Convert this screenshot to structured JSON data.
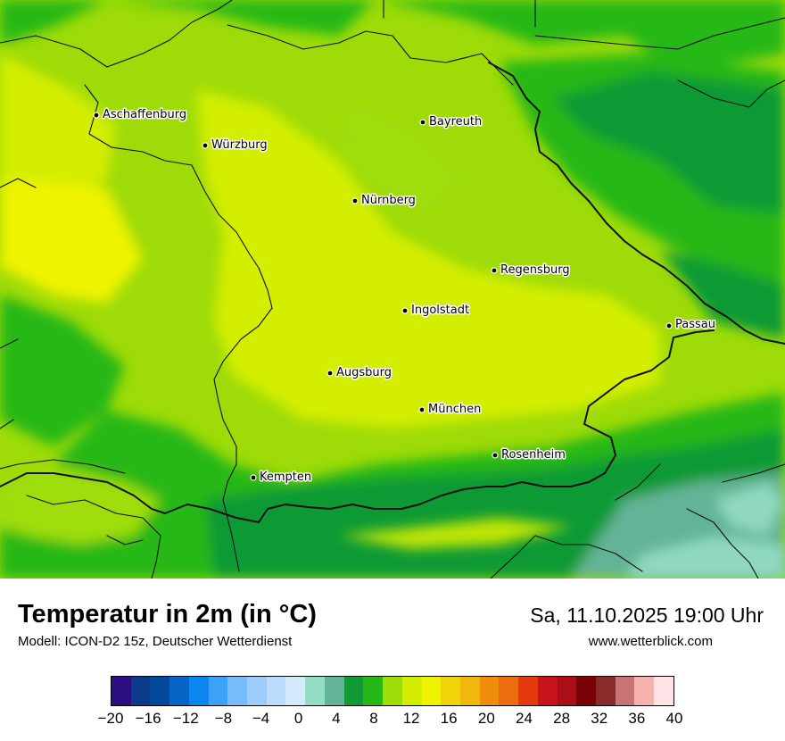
{
  "header": {
    "title": "Temperatur in 2m (in °C)",
    "subtitle": "Modell: ICON-D2 15z, Deutscher Wetterdienst",
    "datetime": "Sa, 11.10.2025 19:00 Uhr",
    "website": "www.wetterblick.com"
  },
  "map": {
    "cities": [
      {
        "name": "Aschaffenburg"
      },
      {
        "name": "Würzburg"
      },
      {
        "name": "Bayreuth"
      },
      {
        "name": "Nürnberg"
      },
      {
        "name": "Regensburg"
      },
      {
        "name": "Ingolstadt"
      },
      {
        "name": "Passau"
      },
      {
        "name": "Augsburg"
      },
      {
        "name": "München"
      },
      {
        "name": "Rosenheim"
      },
      {
        "name": "Kempten"
      }
    ]
  },
  "legend": {
    "ticks": [
      "−20",
      "−16",
      "−12",
      "−8",
      "−4",
      "0",
      "4",
      "8",
      "12",
      "16",
      "20",
      "24",
      "28",
      "32",
      "36",
      "40"
    ],
    "colors": [
      "#2d0e80",
      "#0b3a8a",
      "#05479a",
      "#0564c4",
      "#0a86ee",
      "#3ba2f8",
      "#76bdfa",
      "#9ccdfb",
      "#bddcfc",
      "#d6e9fd",
      "#94dcc3",
      "#63b396",
      "#119a35",
      "#25b816",
      "#9fdd08",
      "#d3ee02",
      "#eef300",
      "#f0d409",
      "#f1b80c",
      "#f18d0d",
      "#ec6d0f",
      "#e33a10",
      "#c7141a",
      "#a80f16",
      "#7a0307",
      "#8a2b2b",
      "#c77474",
      "#f6b3ad",
      "#ffe3e6"
    ]
  }
}
